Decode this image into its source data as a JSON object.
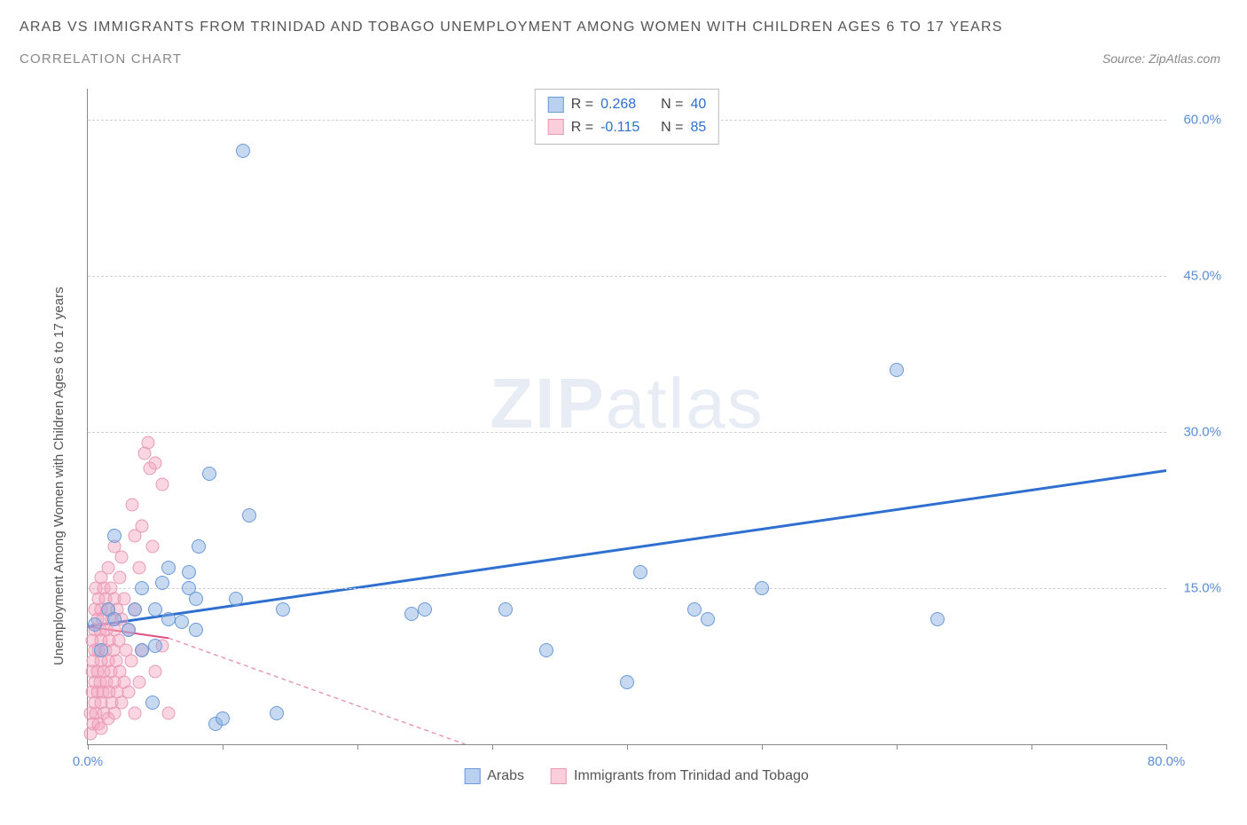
{
  "title": "ARAB VS IMMIGRANTS FROM TRINIDAD AND TOBAGO UNEMPLOYMENT AMONG WOMEN WITH CHILDREN AGES 6 TO 17 YEARS",
  "subtitle": "CORRELATION CHART",
  "source": "Source: ZipAtlas.com",
  "y_axis_label": "Unemployment Among Women with Children Ages 6 to 17 years",
  "watermark_bold": "ZIP",
  "watermark_light": "atlas",
  "chart": {
    "type": "scatter",
    "xlim": [
      0,
      80
    ],
    "ylim": [
      0,
      63
    ],
    "x_ticks": [
      0,
      10,
      20,
      30,
      40,
      50,
      60,
      70,
      80
    ],
    "x_tick_labels": {
      "0": "0.0%",
      "80": "80.0%"
    },
    "y_ticks": [
      15,
      30,
      45,
      60
    ],
    "y_tick_labels": [
      "15.0%",
      "30.0%",
      "45.0%",
      "60.0%"
    ],
    "background_color": "#ffffff",
    "grid_color": "#d0d0d0",
    "axis_color": "#888888",
    "tick_label_color": "#5b8dd6",
    "series": [
      {
        "name": "Arabs",
        "color_fill": "rgba(130,170,225,0.45)",
        "color_stroke": "#6a9ad8",
        "marker_size": 16,
        "R": "0.268",
        "N": "40",
        "trend": {
          "x1": 0,
          "y1": 11.3,
          "x2": 80,
          "y2": 26.3,
          "stroke": "#2f6fd0",
          "width": 3,
          "dash": ""
        },
        "points": [
          [
            0.5,
            11.5
          ],
          [
            1,
            9
          ],
          [
            1.5,
            13
          ],
          [
            2,
            12
          ],
          [
            2,
            20
          ],
          [
            3,
            11
          ],
          [
            3.5,
            13
          ],
          [
            4,
            9
          ],
          [
            4,
            15
          ],
          [
            4.8,
            4
          ],
          [
            5,
            9.5
          ],
          [
            5,
            13
          ],
          [
            5.5,
            15.5
          ],
          [
            6,
            12
          ],
          [
            6,
            17
          ],
          [
            7,
            11.8
          ],
          [
            7.5,
            15
          ],
          [
            7.5,
            16.5
          ],
          [
            8,
            11
          ],
          [
            8,
            14
          ],
          [
            8.2,
            19
          ],
          [
            9,
            26
          ],
          [
            9.5,
            2
          ],
          [
            10,
            2.5
          ],
          [
            11,
            14
          ],
          [
            11.5,
            57
          ],
          [
            12,
            22
          ],
          [
            14,
            3
          ],
          [
            14.5,
            13
          ],
          [
            24,
            12.5
          ],
          [
            25,
            13
          ],
          [
            31,
            13
          ],
          [
            34,
            9
          ],
          [
            40,
            6
          ],
          [
            41,
            16.5
          ],
          [
            45,
            13
          ],
          [
            46,
            12
          ],
          [
            50,
            15
          ],
          [
            60,
            36
          ],
          [
            63,
            12
          ]
        ]
      },
      {
        "name": "Immigrants from Trinidad and Tobago",
        "color_fill": "rgba(245,165,190,0.45)",
        "color_stroke": "#e89ab5",
        "marker_size": 15,
        "R": "-0.115",
        "N": "85",
        "trend_solid": {
          "x1": 0,
          "y1": 11.3,
          "x2": 6,
          "y2": 10.2,
          "stroke": "#e05080",
          "width": 2
        },
        "trend_dash": {
          "x1": 6,
          "y1": 10.2,
          "x2": 28,
          "y2": 0,
          "stroke": "#e89ab5",
          "width": 1.5,
          "dash": "5,4"
        },
        "points": [
          [
            0.2,
            1
          ],
          [
            0.2,
            3
          ],
          [
            0.3,
            5
          ],
          [
            0.3,
            7
          ],
          [
            0.3,
            10
          ],
          [
            0.4,
            2
          ],
          [
            0.4,
            8
          ],
          [
            0.5,
            4
          ],
          [
            0.5,
            6
          ],
          [
            0.5,
            9
          ],
          [
            0.5,
            11
          ],
          [
            0.5,
            13
          ],
          [
            0.6,
            3
          ],
          [
            0.6,
            15
          ],
          [
            0.7,
            5
          ],
          [
            0.7,
            7
          ],
          [
            0.7,
            12
          ],
          [
            0.8,
            2
          ],
          [
            0.8,
            9
          ],
          [
            0.8,
            14
          ],
          [
            0.9,
            6
          ],
          [
            0.9,
            11
          ],
          [
            1,
            1.5
          ],
          [
            1,
            4
          ],
          [
            1,
            8
          ],
          [
            1,
            10
          ],
          [
            1,
            13
          ],
          [
            1,
            16
          ],
          [
            1.1,
            5
          ],
          [
            1.1,
            12
          ],
          [
            1.2,
            3
          ],
          [
            1.2,
            7
          ],
          [
            1.2,
            15
          ],
          [
            1.3,
            9
          ],
          [
            1.3,
            14
          ],
          [
            1.4,
            6
          ],
          [
            1.4,
            11
          ],
          [
            1.5,
            2.5
          ],
          [
            1.5,
            8
          ],
          [
            1.5,
            13
          ],
          [
            1.5,
            17
          ],
          [
            1.6,
            5
          ],
          [
            1.6,
            10
          ],
          [
            1.7,
            7
          ],
          [
            1.7,
            15
          ],
          [
            1.8,
            4
          ],
          [
            1.8,
            12
          ],
          [
            1.9,
            9
          ],
          [
            2,
            3
          ],
          [
            2,
            6
          ],
          [
            2,
            11
          ],
          [
            2,
            14
          ],
          [
            2,
            19
          ],
          [
            2.1,
            8
          ],
          [
            2.2,
            5
          ],
          [
            2.2,
            13
          ],
          [
            2.3,
            10
          ],
          [
            2.4,
            7
          ],
          [
            2.4,
            16
          ],
          [
            2.5,
            4
          ],
          [
            2.5,
            12
          ],
          [
            2.5,
            18
          ],
          [
            2.7,
            6
          ],
          [
            2.7,
            14
          ],
          [
            2.8,
            9
          ],
          [
            3,
            5
          ],
          [
            3,
            11
          ],
          [
            3.2,
            8
          ],
          [
            3.3,
            23
          ],
          [
            3.5,
            3
          ],
          [
            3.5,
            13
          ],
          [
            3.5,
            20
          ],
          [
            3.8,
            6
          ],
          [
            3.8,
            17
          ],
          [
            4,
            9
          ],
          [
            4,
            21
          ],
          [
            4.2,
            28
          ],
          [
            4.5,
            29
          ],
          [
            4.6,
            26.5
          ],
          [
            4.8,
            19
          ],
          [
            5,
            7
          ],
          [
            5,
            27
          ],
          [
            5.5,
            9.5
          ],
          [
            5.5,
            25
          ],
          [
            6,
            3
          ]
        ]
      }
    ],
    "stats_labels": {
      "R": "R =",
      "N": "N ="
    },
    "legend": {
      "series1": "Arabs",
      "series2": "Immigrants from Trinidad and Tobago"
    }
  }
}
